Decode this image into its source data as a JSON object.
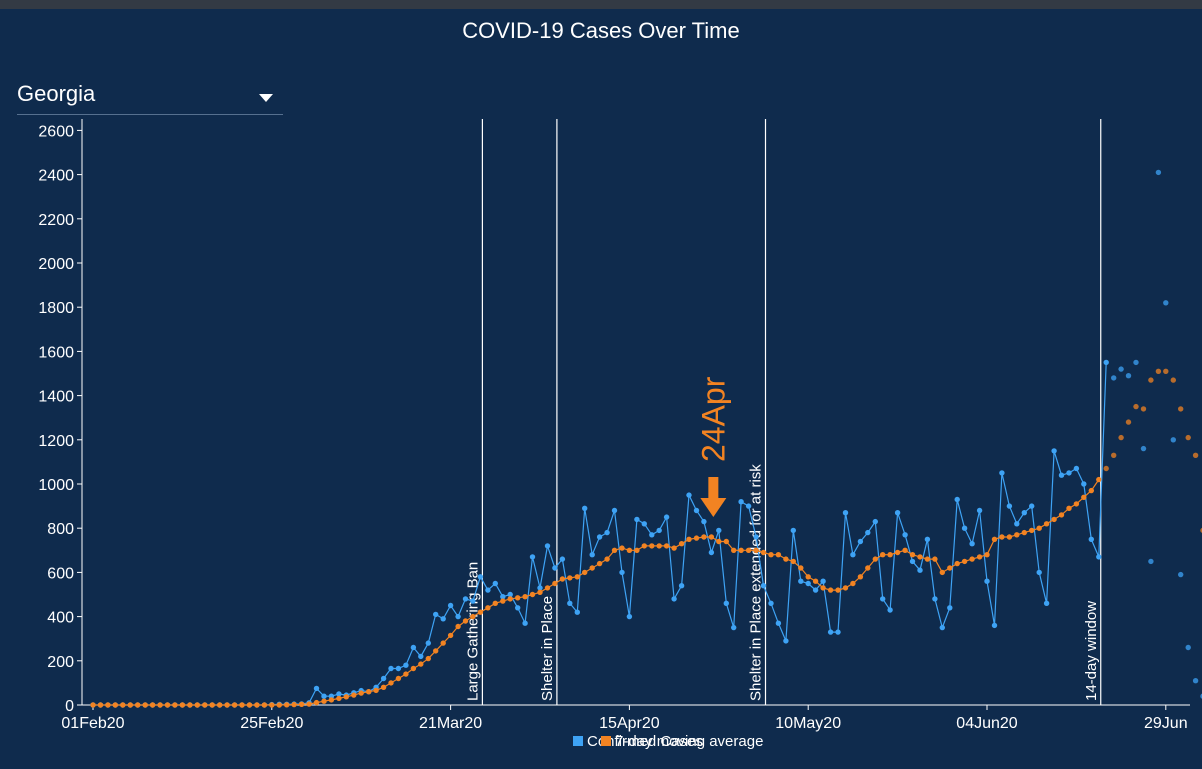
{
  "title": "COVID-19 Cases Over Time",
  "state_selector": {
    "selected": "Georgia"
  },
  "colors": {
    "background": "#0f2b4d",
    "confirmed": "#3ea3f5",
    "average": "#f28322",
    "annotation": "#f28322"
  },
  "chart_data": {
    "type": "line",
    "title": "COVID-19 Cases Over Time",
    "x_start": "2020-02-01",
    "x_ticks": [
      "01Feb20",
      "25Feb20",
      "21Mar20",
      "15Apr20",
      "10May20",
      "04Jun20",
      "29Jun"
    ],
    "y_ticks": [
      0,
      200,
      400,
      600,
      800,
      1000,
      1200,
      1400,
      1600,
      1800,
      2000,
      2200,
      2400,
      2600
    ],
    "ylim": [
      0,
      2650
    ],
    "grid": false,
    "legend": "bottom",
    "series": [
      {
        "name": "Confirmed Cases",
        "values": [
          0,
          0,
          0,
          0,
          0,
          0,
          0,
          0,
          0,
          0,
          0,
          0,
          0,
          0,
          0,
          0,
          0,
          0,
          0,
          0,
          0,
          0,
          0,
          0,
          2,
          3,
          3,
          4,
          5,
          10,
          75,
          40,
          40,
          50,
          45,
          55,
          65,
          60,
          80,
          120,
          165,
          165,
          180,
          260,
          220,
          280,
          410,
          390,
          450,
          400,
          480,
          470,
          580,
          520,
          550,
          490,
          500,
          440,
          370,
          670,
          530,
          720,
          620,
          660,
          460,
          420,
          890,
          680,
          760,
          780,
          880,
          600,
          400,
          840,
          820,
          770,
          790,
          850,
          480,
          540,
          950,
          880,
          830,
          690,
          790,
          460,
          350,
          920,
          900,
          760,
          540,
          460,
          370,
          290,
          790,
          560,
          550,
          520,
          560,
          330,
          330,
          870,
          680,
          740,
          780,
          830,
          480,
          430,
          870,
          770,
          650,
          610,
          750,
          480,
          350,
          440,
          930,
          800,
          730,
          880,
          560,
          360,
          1050,
          900,
          820,
          870,
          900,
          600,
          460,
          1150,
          1040,
          1050,
          1070,
          1000,
          750,
          670,
          1550
        ],
        "projected": [
          1480,
          1520,
          1490,
          1550,
          1160,
          650,
          2410,
          1820,
          1200,
          590,
          260,
          110,
          40
        ]
      },
      {
        "name": "7-day moving average",
        "values": [
          0,
          0,
          0,
          0,
          0,
          0,
          0,
          0,
          0,
          0,
          0,
          0,
          0,
          0,
          0,
          0,
          0,
          0,
          0,
          0,
          0,
          0,
          0,
          0,
          0,
          0,
          1,
          2,
          3,
          4,
          11,
          17,
          23,
          30,
          37,
          45,
          54,
          60,
          66,
          80,
          100,
          120,
          140,
          165,
          185,
          210,
          245,
          280,
          315,
          355,
          380,
          400,
          420,
          440,
          460,
          470,
          480,
          485,
          490,
          500,
          510,
          530,
          550,
          570,
          575,
          580,
          600,
          620,
          640,
          660,
          700,
          710,
          700,
          700,
          720,
          720,
          720,
          720,
          710,
          730,
          750,
          755,
          760,
          760,
          740,
          740,
          700,
          700,
          700,
          700,
          690,
          680,
          680,
          660,
          650,
          620,
          580,
          560,
          530,
          520,
          520,
          530,
          550,
          580,
          620,
          660,
          680,
          680,
          690,
          700,
          680,
          670,
          660,
          660,
          600,
          620,
          640,
          650,
          660,
          670,
          680,
          750,
          760,
          760,
          770,
          780,
          790,
          800,
          820,
          840,
          860,
          890,
          910,
          940,
          970,
          1020
        ],
        "projected": [
          1070,
          1130,
          1210,
          1280,
          1350,
          1340,
          1470,
          1510,
          1510,
          1470,
          1340,
          1210,
          1130,
          790
        ]
      }
    ],
    "events": [
      {
        "label": "Large Gathering Ban",
        "date": "2020-03-24"
      },
      {
        "label": "Shelter in Place",
        "date": "2020-04-03"
      },
      {
        "label": "Shelter in Place extended for at risk",
        "date": "2020-05-01"
      },
      {
        "label": "14-day window",
        "date": "2020-06-15"
      }
    ],
    "annotation": {
      "label": "24Apr",
      "date": "2020-04-24"
    }
  }
}
